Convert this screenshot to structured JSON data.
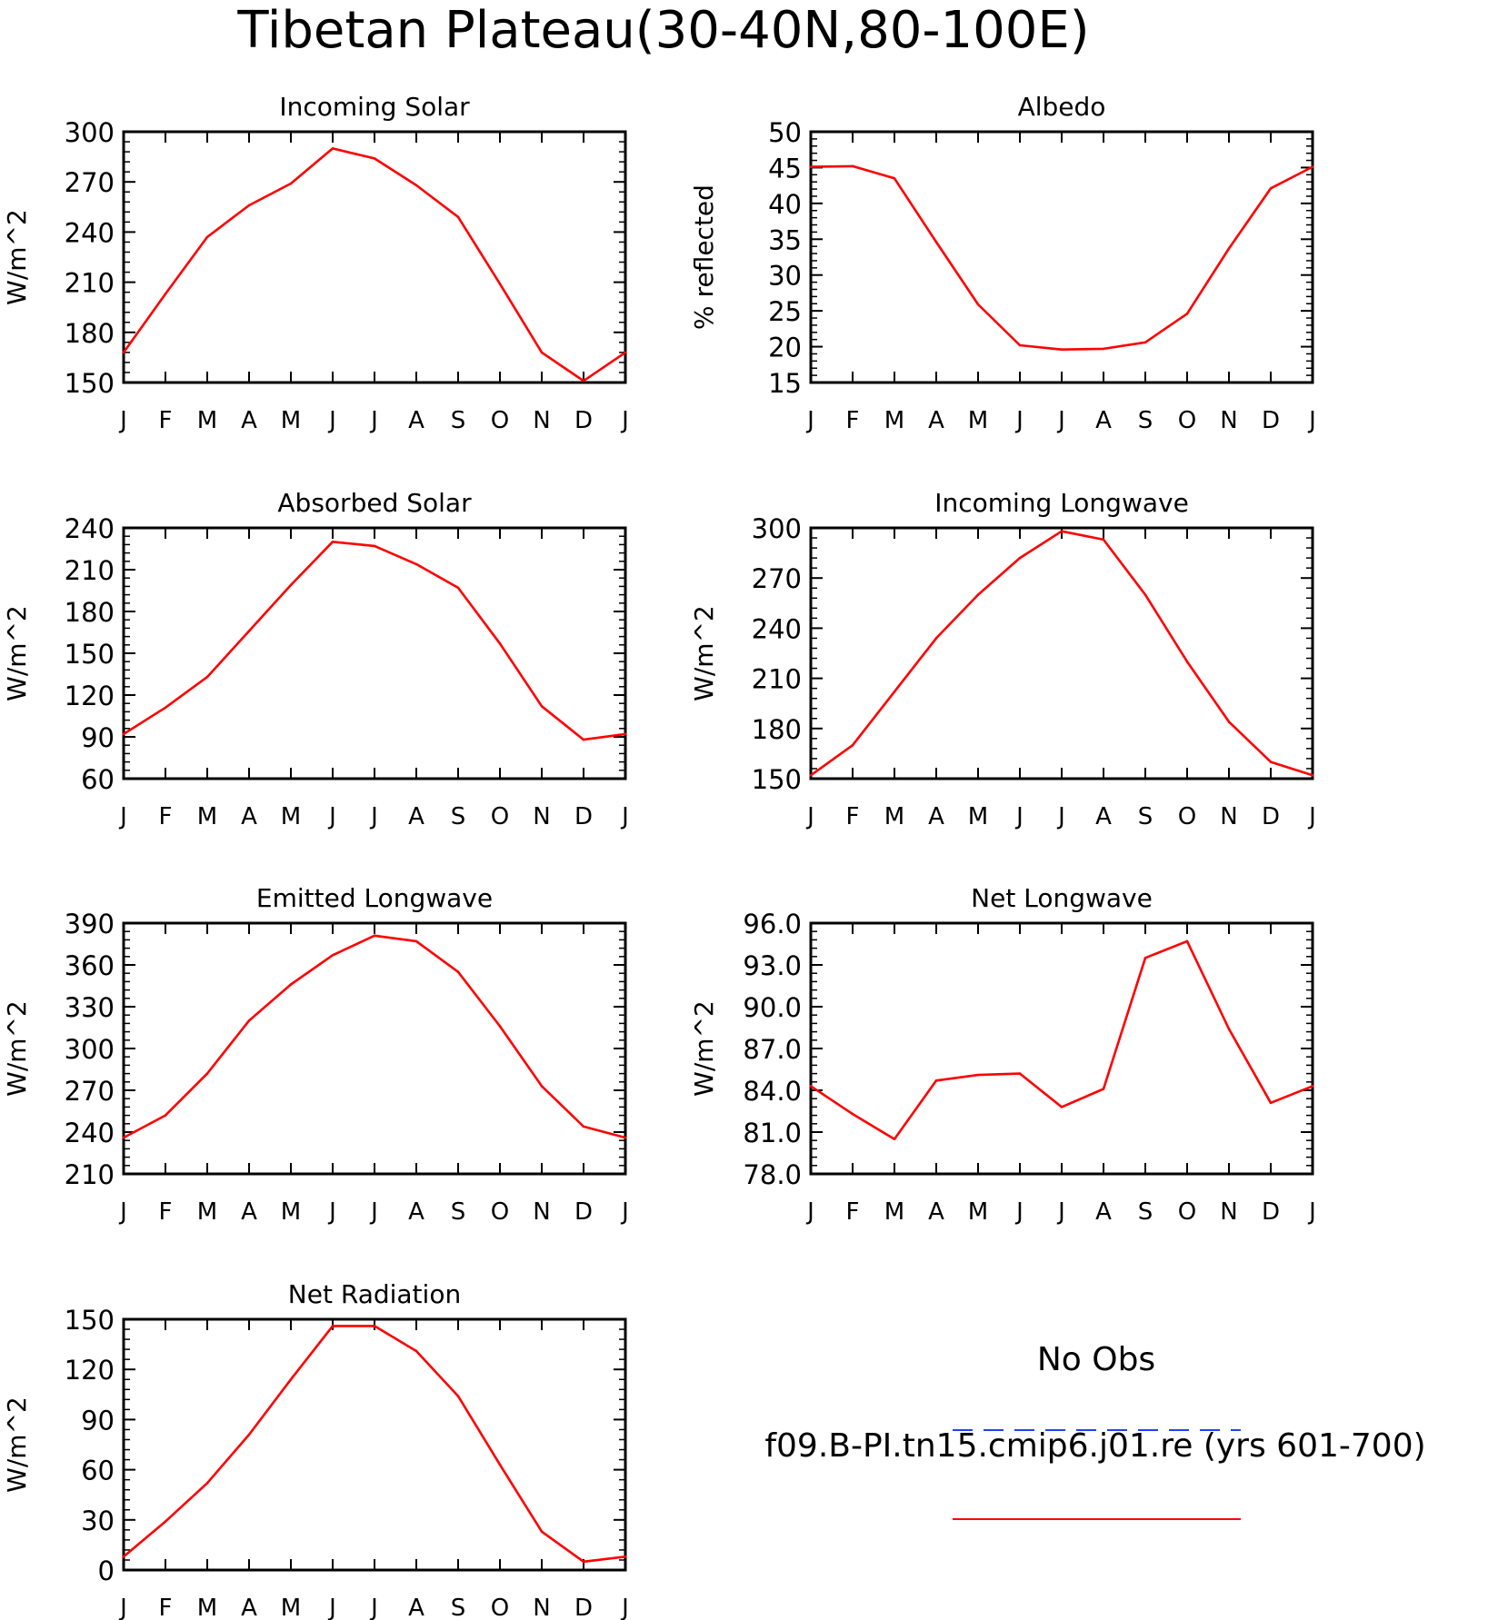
{
  "figure": {
    "title": "Tibetan Plateau(30-40N,80-100E)"
  },
  "legend": {
    "obs_label": "No Obs",
    "obs_color": "#2040ff",
    "model_label": "f09.B-PI.tn15.cmip6.j01.re (yrs 601-700)",
    "model_color": "#ff0000"
  },
  "chart_data": [
    {
      "type": "line",
      "title": "Incoming Solar",
      "xlabel": "",
      "ylabel": "W/m^2",
      "categories": [
        "J",
        "F",
        "M",
        "A",
        "M",
        "J",
        "J",
        "A",
        "S",
        "O",
        "N",
        "D",
        "J"
      ],
      "ylim": [
        150,
        300
      ],
      "yticks": [
        "150",
        "180",
        "210",
        "240",
        "270",
        "300"
      ],
      "series": [
        {
          "values": [
            168,
            203,
            237,
            256,
            269,
            290,
            284,
            268,
            249,
            209,
            168,
            151,
            168
          ]
        }
      ],
      "grid": false
    },
    {
      "type": "line",
      "title": "Albedo",
      "xlabel": "",
      "ylabel": "% reflected",
      "categories": [
        "J",
        "F",
        "M",
        "A",
        "M",
        "J",
        "J",
        "A",
        "S",
        "O",
        "N",
        "D",
        "J"
      ],
      "ylim": [
        15,
        50
      ],
      "yticks": [
        "15",
        "20",
        "25",
        "30",
        "35",
        "40",
        "45",
        "50"
      ],
      "series": [
        {
          "values": [
            45.1,
            45.2,
            43.5,
            34.6,
            25.9,
            20.2,
            19.6,
            19.7,
            20.6,
            24.6,
            33.7,
            42.1,
            45.1
          ]
        }
      ],
      "grid": false
    },
    {
      "type": "line",
      "title": "Absorbed Solar",
      "xlabel": "",
      "ylabel": "W/m^2",
      "categories": [
        "J",
        "F",
        "M",
        "A",
        "M",
        "J",
        "J",
        "A",
        "S",
        "O",
        "N",
        "D",
        "J"
      ],
      "ylim": [
        60,
        240
      ],
      "yticks": [
        "60",
        "90",
        "120",
        "150",
        "180",
        "210",
        "240"
      ],
      "series": [
        {
          "values": [
            92,
            111,
            133,
            166,
            199,
            230,
            227,
            214,
            197,
            157,
            112,
            88,
            92
          ]
        }
      ],
      "grid": false
    },
    {
      "type": "line",
      "title": "Incoming Longwave",
      "xlabel": "",
      "ylabel": "W/m^2",
      "categories": [
        "J",
        "F",
        "M",
        "A",
        "M",
        "J",
        "J",
        "A",
        "S",
        "O",
        "N",
        "D",
        "J"
      ],
      "ylim": [
        150,
        300
      ],
      "yticks": [
        "150",
        "180",
        "210",
        "240",
        "270",
        "300"
      ],
      "series": [
        {
          "values": [
            152,
            170,
            202,
            234,
            260,
            282,
            298,
            293,
            260,
            220,
            184,
            160,
            152
          ]
        }
      ],
      "grid": false
    },
    {
      "type": "line",
      "title": "Emitted Longwave",
      "xlabel": "",
      "ylabel": "W/m^2",
      "categories": [
        "J",
        "F",
        "M",
        "A",
        "M",
        "J",
        "J",
        "A",
        "S",
        "O",
        "N",
        "D",
        "J"
      ],
      "ylim": [
        210,
        390
      ],
      "yticks": [
        "210",
        "240",
        "270",
        "300",
        "330",
        "360",
        "390"
      ],
      "series": [
        {
          "values": [
            236,
            252,
            282,
            320,
            346,
            367,
            381,
            377,
            355,
            316,
            273,
            244,
            236
          ]
        }
      ],
      "grid": false
    },
    {
      "type": "line",
      "title": "Net Longwave",
      "xlabel": "",
      "ylabel": "W/m^2",
      "categories": [
        "J",
        "F",
        "M",
        "A",
        "M",
        "J",
        "J",
        "A",
        "S",
        "O",
        "N",
        "D",
        "J"
      ],
      "ylim": [
        78,
        96
      ],
      "yticks": [
        "78.0",
        "81.0",
        "84.0",
        "87.0",
        "90.0",
        "93.0",
        "96.0"
      ],
      "series": [
        {
          "values": [
            84.3,
            82.3,
            80.5,
            84.7,
            85.1,
            85.2,
            82.8,
            84.1,
            93.5,
            94.7,
            88.4,
            83.1,
            84.3
          ]
        }
      ],
      "grid": false
    },
    {
      "type": "line",
      "title": "Net Radiation",
      "xlabel": "",
      "ylabel": "W/m^2",
      "categories": [
        "J",
        "F",
        "M",
        "A",
        "M",
        "J",
        "J",
        "A",
        "S",
        "O",
        "N",
        "D",
        "J"
      ],
      "ylim": [
        0,
        150
      ],
      "yticks": [
        "0",
        "30",
        "60",
        "90",
        "120",
        "150"
      ],
      "series": [
        {
          "values": [
            8,
            29,
            52,
            81,
            114,
            146,
            146,
            131,
            104,
            63,
            23,
            5,
            8
          ]
        }
      ],
      "grid": false
    }
  ]
}
